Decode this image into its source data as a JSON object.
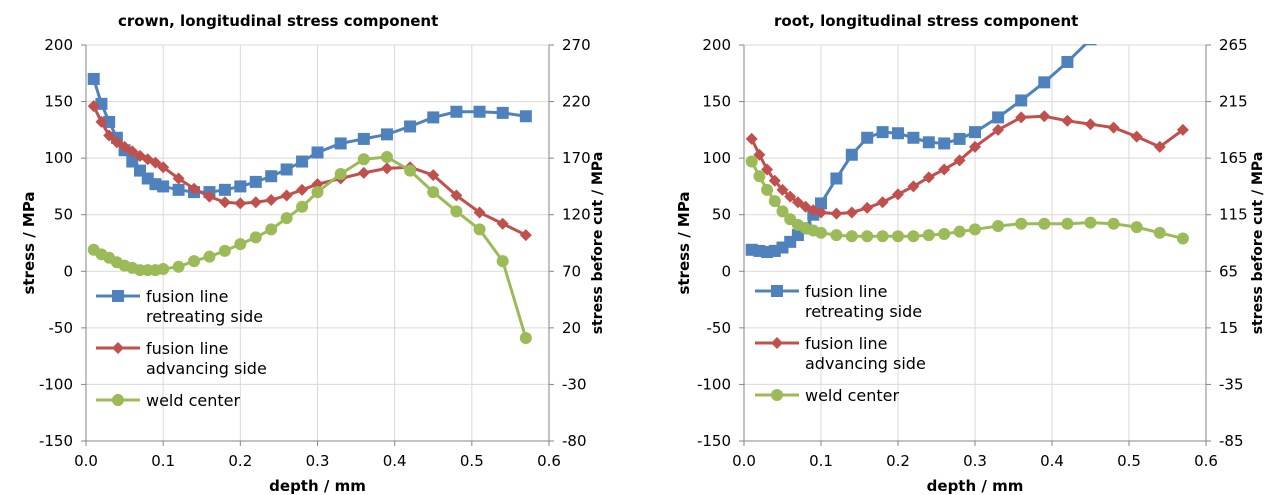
{
  "chart_data": [
    {
      "type": "line",
      "title": "crown, longitudinal stress component",
      "xlabel": "depth  / mm",
      "ylabel": "stress / MPa",
      "y2label": "stress before cut / MPa",
      "xlim": [
        0,
        0.6
      ],
      "ylim": [
        -150,
        200
      ],
      "y2lim": [
        -80,
        270
      ],
      "xticks": [
        "0.0",
        "0.1",
        "0.2",
        "0.3",
        "0.4",
        "0.5",
        "0.6"
      ],
      "yticks": [
        "-150",
        "-100",
        "-50",
        "0",
        "50",
        "100",
        "150",
        "200"
      ],
      "y2ticks": [
        "-80",
        "-30",
        "20",
        "70",
        "120",
        "170",
        "220",
        "270"
      ],
      "grid": true,
      "legend_position": "bottom-left",
      "series": [
        {
          "name": "fusion line retreating side",
          "legend_lines": [
            "fusion line",
            "retreating side"
          ],
          "color": "#4F81BD",
          "marker": "square",
          "x": [
            0.01,
            0.02,
            0.03,
            0.04,
            0.05,
            0.06,
            0.07,
            0.08,
            0.09,
            0.1,
            0.12,
            0.14,
            0.16,
            0.18,
            0.2,
            0.22,
            0.24,
            0.26,
            0.28,
            0.3,
            0.33,
            0.36,
            0.39,
            0.42,
            0.45,
            0.48,
            0.51,
            0.54,
            0.57
          ],
          "y": [
            170,
            148,
            132,
            118,
            107,
            97,
            89,
            82,
            77,
            75,
            72,
            70,
            70,
            72,
            75,
            79,
            84,
            90,
            97,
            105,
            113,
            117,
            121,
            128,
            136,
            141,
            141,
            140,
            137
          ]
        },
        {
          "name": "fusion line advancing side",
          "legend_lines": [
            "fusion line",
            "advancing side"
          ],
          "color": "#C0504D",
          "marker": "diamond",
          "x": [
            0.01,
            0.02,
            0.03,
            0.04,
            0.05,
            0.06,
            0.07,
            0.08,
            0.09,
            0.1,
            0.12,
            0.14,
            0.16,
            0.18,
            0.2,
            0.22,
            0.24,
            0.26,
            0.28,
            0.3,
            0.33,
            0.36,
            0.39,
            0.42,
            0.45,
            0.48,
            0.51,
            0.54,
            0.57
          ],
          "y": [
            146,
            132,
            120,
            114,
            110,
            106,
            102,
            99,
            96,
            92,
            82,
            73,
            66,
            61,
            60,
            61,
            63,
            67,
            72,
            77,
            82,
            87,
            91,
            92,
            85,
            67,
            52,
            42,
            32
          ]
        },
        {
          "name": "weld center",
          "legend_lines": [
            "weld center"
          ],
          "color": "#9BBB59",
          "marker": "circle",
          "x": [
            0.01,
            0.02,
            0.03,
            0.04,
            0.05,
            0.06,
            0.07,
            0.08,
            0.09,
            0.1,
            0.12,
            0.14,
            0.16,
            0.18,
            0.2,
            0.22,
            0.24,
            0.26,
            0.28,
            0.3,
            0.33,
            0.36,
            0.39,
            0.42,
            0.45,
            0.48,
            0.51,
            0.54,
            0.57
          ],
          "y": [
            19,
            15,
            12,
            8,
            5,
            3,
            1,
            1,
            1,
            2,
            4,
            9,
            13,
            18,
            24,
            30,
            37,
            47,
            57,
            70,
            86,
            99,
            101,
            89,
            70,
            53,
            37,
            9,
            -59
          ]
        }
      ]
    },
    {
      "type": "line",
      "title": "root, longitudinal stress component",
      "xlabel": "depth  / mm",
      "ylabel": "stress / MPa",
      "y2label": "stress before cut / MPa",
      "xlim": [
        0,
        0.6
      ],
      "ylim": [
        -150,
        200
      ],
      "y2lim": [
        -85,
        265
      ],
      "xticks": [
        "0.0",
        "0.1",
        "0.2",
        "0.3",
        "0.4",
        "0.5",
        "0.6"
      ],
      "yticks": [
        "-150",
        "-100",
        "-50",
        "0",
        "50",
        "100",
        "150",
        "200"
      ],
      "y2ticks": [
        "-85",
        "-35",
        "15",
        "65",
        "115",
        "165",
        "215",
        "265"
      ],
      "grid": true,
      "legend_position": "bottom-left",
      "series": [
        {
          "name": "fusion line retreating side",
          "legend_lines": [
            "fusion line",
            "retreating side"
          ],
          "color": "#4F81BD",
          "marker": "square",
          "x": [
            0.01,
            0.02,
            0.03,
            0.04,
            0.05,
            0.06,
            0.07,
            0.08,
            0.09,
            0.1,
            0.12,
            0.14,
            0.16,
            0.18,
            0.2,
            0.22,
            0.24,
            0.26,
            0.28,
            0.3,
            0.33,
            0.36,
            0.39,
            0.42,
            0.45
          ],
          "y": [
            19,
            18,
            17,
            18,
            21,
            26,
            32,
            38,
            50,
            60,
            82,
            103,
            118,
            123,
            122,
            118,
            114,
            113,
            117,
            123,
            136,
            151,
            167,
            185,
            205
          ]
        },
        {
          "name": "fusion line advancing side",
          "legend_lines": [
            "fusion line",
            "advancing side"
          ],
          "color": "#C0504D",
          "marker": "diamond",
          "x": [
            0.01,
            0.02,
            0.03,
            0.04,
            0.05,
            0.06,
            0.07,
            0.08,
            0.09,
            0.1,
            0.12,
            0.14,
            0.16,
            0.18,
            0.2,
            0.22,
            0.24,
            0.26,
            0.28,
            0.3,
            0.33,
            0.36,
            0.39,
            0.42,
            0.45,
            0.48,
            0.51,
            0.54,
            0.57
          ],
          "y": [
            117,
            103,
            90,
            80,
            72,
            66,
            61,
            57,
            54,
            52,
            51,
            52,
            56,
            61,
            68,
            75,
            83,
            90,
            98,
            110,
            125,
            136,
            137,
            133,
            130,
            127,
            119,
            110,
            125
          ]
        },
        {
          "name": "weld center",
          "legend_lines": [
            "weld center"
          ],
          "color": "#9BBB59",
          "marker": "circle",
          "x": [
            0.01,
            0.02,
            0.03,
            0.04,
            0.05,
            0.06,
            0.07,
            0.08,
            0.09,
            0.1,
            0.12,
            0.14,
            0.16,
            0.18,
            0.2,
            0.22,
            0.24,
            0.26,
            0.28,
            0.3,
            0.33,
            0.36,
            0.39,
            0.42,
            0.45,
            0.48,
            0.51,
            0.54,
            0.57
          ],
          "y": [
            97,
            84,
            72,
            62,
            53,
            46,
            41,
            38,
            36,
            34,
            32,
            31,
            31,
            31,
            31,
            31,
            32,
            33,
            35,
            37,
            40,
            42,
            42,
            42,
            43,
            42,
            39,
            34,
            29
          ]
        }
      ]
    }
  ]
}
